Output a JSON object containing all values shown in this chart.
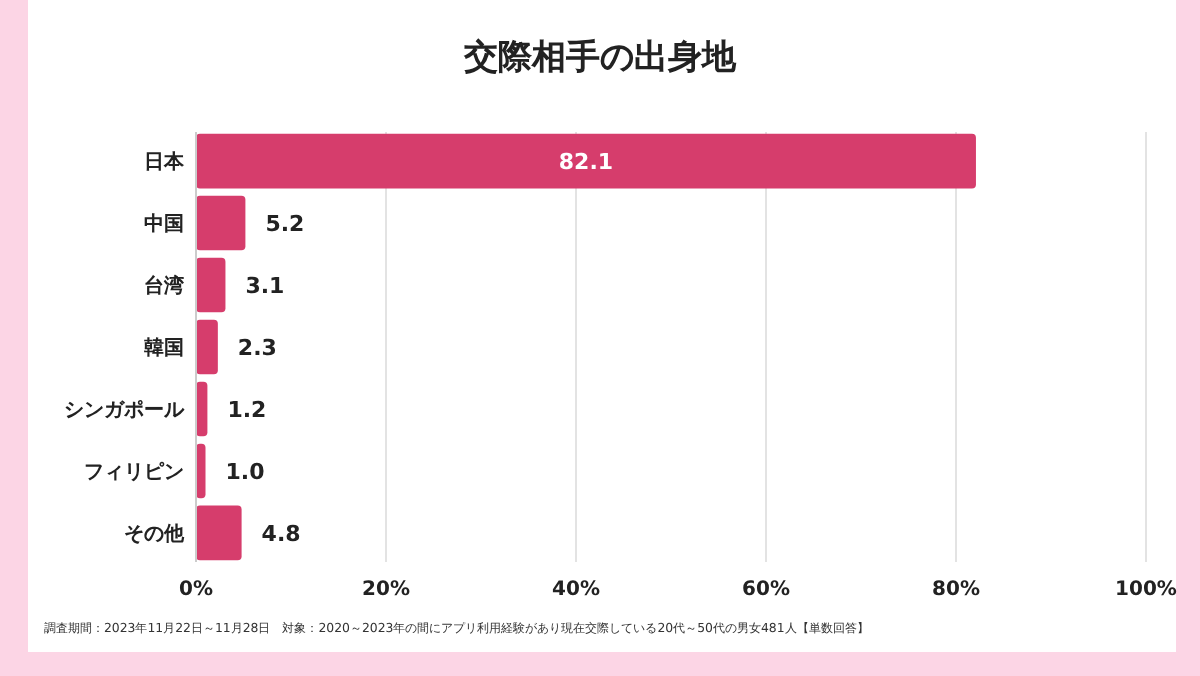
{
  "chart_data": {
    "type": "bar",
    "orientation": "horizontal",
    "title": "交際相手の出身地",
    "categories": [
      "日本",
      "中国",
      "台湾",
      "韓国",
      "シンガポール",
      "フィリピン",
      "その他"
    ],
    "values": [
      82.1,
      5.2,
      3.1,
      2.3,
      1.2,
      1.0,
      4.8
    ],
    "value_labels": [
      "82.1",
      "5.2",
      "3.1",
      "2.3",
      "1.2",
      "1.0",
      "4.8"
    ],
    "color": "#d63d6c",
    "xlim": [
      0,
      100
    ],
    "xticks": [
      {
        "value": 0,
        "label": "0%"
      },
      {
        "value": 20,
        "label": "20%"
      },
      {
        "value": 40,
        "label": "40%"
      },
      {
        "value": 60,
        "label": "60%"
      },
      {
        "value": 80,
        "label": "80%"
      },
      {
        "value": 100,
        "label": "100%"
      }
    ],
    "grid": "x",
    "annotations": [
      "調査期間：2023年11月22日～11月28日　対象：2020～2023年の間にアプリ利用経験があり現在交際している20代～50代の男女481人【単数回答】"
    ]
  }
}
